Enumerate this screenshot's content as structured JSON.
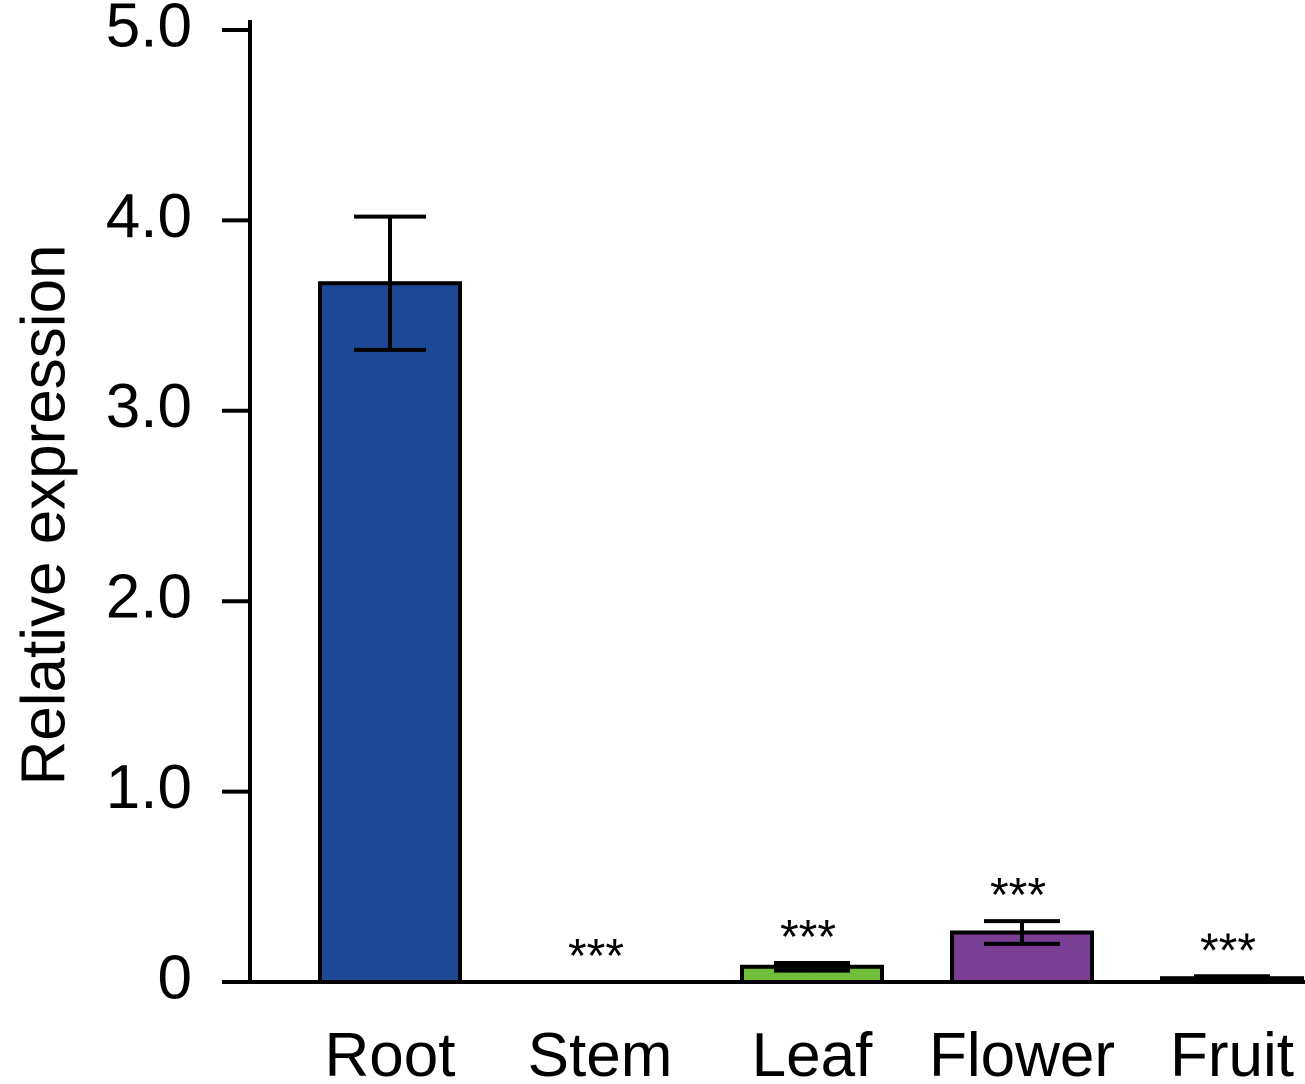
{
  "chart_data": {
    "type": "bar",
    "title": "",
    "xlabel": "",
    "ylabel": "Relative expression",
    "ylim": [
      0,
      5.0
    ],
    "y_ticks": [
      0,
      1.0,
      2.0,
      3.0,
      4.0,
      5.0
    ],
    "y_tick_labels": [
      "0",
      "1.0",
      "2.0",
      "3.0",
      "4.0",
      "5.0"
    ],
    "grid": false,
    "legend": "none",
    "categories": [
      "Root",
      "Stem",
      "Leaf",
      "Flower",
      "Fruit"
    ],
    "values": [
      3.67,
      0.0,
      0.08,
      0.26,
      0.02
    ],
    "error": [
      0.35,
      0.0,
      0.02,
      0.06,
      0.01
    ],
    "significance": [
      "",
      "***",
      "***",
      "***",
      "***"
    ],
    "colors": [
      "#1d4896",
      "#ffffff",
      "#6fbe3a",
      "#7a3e94",
      "#e8953a"
    ]
  }
}
